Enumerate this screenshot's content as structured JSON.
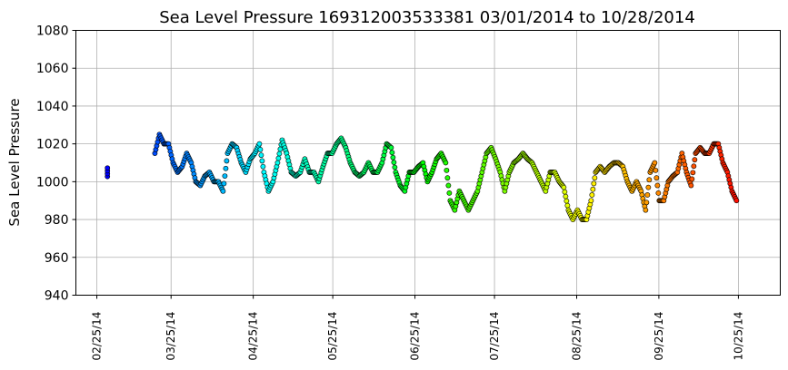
{
  "chart_data": {
    "type": "scatter",
    "title": "Sea Level Pressure 169312003533381  03/01/2014 to 10/28/2014",
    "xlabel": "",
    "ylabel": "Sea Level Pressure",
    "ylim": [
      940,
      1080
    ],
    "yticks": [
      940,
      960,
      980,
      1000,
      1020,
      1040,
      1060,
      1080
    ],
    "xlim_days_from_2014_02_25": [
      -7.9,
      257.8
    ],
    "xticks": [
      {
        "label": "02/25/14",
        "day": 0
      },
      {
        "label": "03/25/14",
        "day": 28
      },
      {
        "label": "04/25/14",
        "day": 59
      },
      {
        "label": "05/25/14",
        "day": 89
      },
      {
        "label": "06/25/14",
        "day": 120
      },
      {
        "label": "07/25/14",
        "day": 150
      },
      {
        "label": "08/25/14",
        "day": 181
      },
      {
        "label": "09/25/14",
        "day": 212
      },
      {
        "label": "10/25/14",
        "day": 242
      }
    ],
    "grid": true,
    "color_scale": "time (blue to red)",
    "isolated_points": [
      {
        "day": 4,
        "value": 1005
      }
    ],
    "series_start_day": 21.9,
    "series_step_days": 1.714,
    "values": [
      1015,
      1025,
      1020,
      1020,
      1010,
      1005,
      1008,
      1015,
      1010,
      1000,
      998,
      1003,
      1005,
      1000,
      1000,
      995,
      1015,
      1020,
      1018,
      1010,
      1005,
      1012,
      1015,
      1020,
      1005,
      995,
      1000,
      1010,
      1022,
      1015,
      1005,
      1003,
      1005,
      1012,
      1005,
      1005,
      1000,
      1008,
      1015,
      1015,
      1020,
      1023,
      1018,
      1010,
      1005,
      1003,
      1005,
      1010,
      1005,
      1005,
      1010,
      1020,
      1018,
      1005,
      998,
      995,
      1005,
      1005,
      1008,
      1010,
      1000,
      1005,
      1012,
      1015,
      1010,
      990,
      985,
      995,
      990,
      985,
      990,
      995,
      1005,
      1015,
      1018,
      1012,
      1005,
      995,
      1005,
      1010,
      1012,
      1015,
      1012,
      1010,
      1005,
      1000,
      995,
      1005,
      1005,
      1000,
      997,
      985,
      980,
      985,
      980,
      980,
      990,
      1005,
      1008,
      1005,
      1008,
      1010,
      1010,
      1008,
      1000,
      995,
      1000,
      995,
      985,
      1005,
      1010,
      990,
      990,
      1000,
      1003,
      1005,
      1015,
      1005,
      998,
      1015,
      1018,
      1015,
      1015,
      1020,
      1020,
      1010,
      1005,
      995,
      990
    ]
  }
}
